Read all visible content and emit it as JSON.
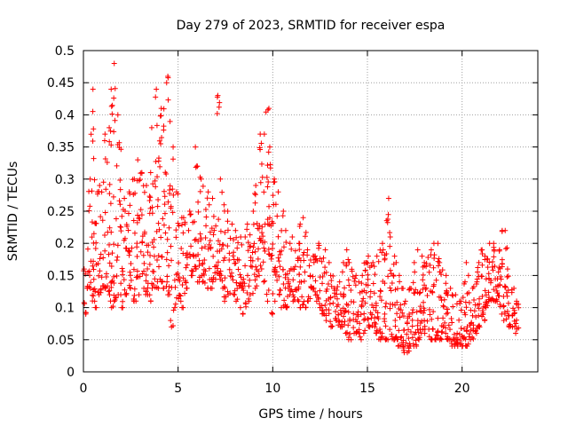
{
  "chart_data": {
    "type": "scatter",
    "title": "Day 279 of 2023, SRMTID for receiver espa",
    "xlabel": "GPS time / hours",
    "ylabel": "SRMTID / TECUs",
    "xlim": [
      0,
      24
    ],
    "ylim": [
      0,
      0.5
    ],
    "x_ticks": [
      0,
      5,
      10,
      15,
      20
    ],
    "y_ticks": [
      0,
      0.05,
      0.1,
      0.15,
      0.2,
      0.25,
      0.3,
      0.35,
      0.4,
      0.45,
      0.5
    ],
    "x_tick_labels": [
      "0",
      "5",
      "10",
      "15",
      "20"
    ],
    "y_tick_labels": [
      "0",
      "0.05",
      "0.1",
      "0.15",
      "0.2",
      "0.25",
      "0.3",
      "0.35",
      "0.4",
      "0.45",
      "0.5"
    ],
    "grid": true,
    "marker": "+",
    "color": "#ff0000",
    "series": [
      {
        "name": "SRMTID",
        "x": [
          0.0,
          0.2,
          0.4,
          0.6,
          0.8,
          1.0,
          1.2,
          1.4,
          1.6,
          1.8,
          2.0,
          2.2,
          2.4,
          2.6,
          2.8,
          3.0,
          3.2,
          3.4,
          3.6,
          3.8,
          4.0,
          4.2,
          4.4,
          4.6,
          4.8,
          5.0,
          5.2,
          5.4,
          5.6,
          5.8,
          6.0,
          6.2,
          6.4,
          6.6,
          6.8,
          7.0,
          7.2,
          7.4,
          7.6,
          7.8,
          8.0,
          8.2,
          8.4,
          8.6,
          8.8,
          9.0,
          9.2,
          9.4,
          9.6,
          9.8,
          10.0,
          10.2,
          10.4,
          10.6,
          10.8,
          11.0,
          11.2,
          11.4,
          11.6,
          11.8,
          12.0,
          12.2,
          12.4,
          12.6,
          12.8,
          13.0,
          13.2,
          13.4,
          13.6,
          13.8,
          14.0,
          14.2,
          14.4,
          14.6,
          14.8,
          15.0,
          15.2,
          15.4,
          15.6,
          15.8,
          16.0,
          16.2,
          16.4,
          16.6,
          16.8,
          17.0,
          17.2,
          17.4,
          17.6,
          17.8,
          18.0,
          18.2,
          18.4,
          18.6,
          18.8,
          19.0,
          19.2,
          19.4,
          19.6,
          19.8,
          20.0,
          20.2,
          20.4,
          20.6,
          20.8,
          21.0,
          21.2,
          21.4,
          21.6,
          21.8,
          22.0,
          22.2,
          22.4,
          22.6,
          22.8
        ],
        "lo": [
          0.09,
          0.13,
          0.11,
          0.1,
          0.12,
          0.13,
          0.12,
          0.1,
          0.11,
          0.12,
          0.1,
          0.12,
          0.13,
          0.11,
          0.12,
          0.13,
          0.12,
          0.11,
          0.13,
          0.13,
          0.14,
          0.13,
          0.12,
          0.07,
          0.1,
          0.11,
          0.1,
          0.13,
          0.15,
          0.16,
          0.14,
          0.14,
          0.13,
          0.13,
          0.14,
          0.15,
          0.13,
          0.11,
          0.12,
          0.12,
          0.11,
          0.1,
          0.09,
          0.11,
          0.12,
          0.13,
          0.15,
          0.14,
          0.11,
          0.09,
          0.11,
          0.12,
          0.1,
          0.1,
          0.12,
          0.11,
          0.11,
          0.1,
          0.1,
          0.11,
          0.13,
          0.11,
          0.1,
          0.09,
          0.08,
          0.07,
          0.08,
          0.07,
          0.07,
          0.06,
          0.05,
          0.06,
          0.06,
          0.05,
          0.06,
          0.07,
          0.07,
          0.06,
          0.05,
          0.05,
          0.05,
          0.05,
          0.05,
          0.04,
          0.03,
          0.03,
          0.04,
          0.04,
          0.05,
          0.06,
          0.06,
          0.05,
          0.05,
          0.05,
          0.05,
          0.06,
          0.05,
          0.04,
          0.04,
          0.04,
          0.04,
          0.04,
          0.05,
          0.06,
          0.07,
          0.08,
          0.1,
          0.11,
          0.11,
          0.11,
          0.09,
          0.08,
          0.07,
          0.07,
          0.06
        ],
        "hi": [
          0.16,
          0.3,
          0.44,
          0.28,
          0.29,
          0.37,
          0.38,
          0.44,
          0.48,
          0.4,
          0.27,
          0.25,
          0.28,
          0.3,
          0.33,
          0.31,
          0.29,
          0.31,
          0.38,
          0.44,
          0.41,
          0.45,
          0.46,
          0.35,
          0.28,
          0.24,
          0.24,
          0.22,
          0.25,
          0.35,
          0.32,
          0.3,
          0.28,
          0.26,
          0.27,
          0.43,
          0.3,
          0.26,
          0.25,
          0.23,
          0.22,
          0.21,
          0.21,
          0.23,
          0.25,
          0.29,
          0.37,
          0.37,
          0.41,
          0.35,
          0.3,
          0.28,
          0.25,
          0.22,
          0.2,
          0.21,
          0.2,
          0.23,
          0.24,
          0.19,
          0.18,
          0.18,
          0.2,
          0.19,
          0.17,
          0.15,
          0.13,
          0.14,
          0.17,
          0.19,
          0.17,
          0.15,
          0.14,
          0.15,
          0.17,
          0.18,
          0.17,
          0.18,
          0.2,
          0.19,
          0.27,
          0.21,
          0.18,
          0.15,
          0.13,
          0.11,
          0.13,
          0.17,
          0.19,
          0.18,
          0.17,
          0.19,
          0.2,
          0.2,
          0.17,
          0.15,
          0.13,
          0.12,
          0.12,
          0.11,
          0.14,
          0.17,
          0.13,
          0.14,
          0.17,
          0.19,
          0.18,
          0.2,
          0.2,
          0.19,
          0.22,
          0.22,
          0.16,
          0.13,
          0.11
        ],
        "n": [
          8,
          16,
          22,
          14,
          14,
          16,
          16,
          18,
          18,
          16,
          12,
          12,
          14,
          14,
          16,
          14,
          14,
          14,
          16,
          18,
          16,
          16,
          18,
          14,
          12,
          12,
          12,
          10,
          12,
          14,
          14,
          14,
          12,
          12,
          12,
          16,
          12,
          12,
          12,
          12,
          12,
          12,
          12,
          12,
          12,
          14,
          16,
          16,
          16,
          16,
          14,
          14,
          12,
          12,
          12,
          12,
          12,
          12,
          12,
          10,
          10,
          10,
          12,
          12,
          12,
          12,
          12,
          12,
          14,
          14,
          14,
          12,
          12,
          12,
          14,
          14,
          14,
          14,
          14,
          14,
          14,
          14,
          14,
          14,
          14,
          12,
          14,
          14,
          14,
          14,
          14,
          14,
          14,
          14,
          14,
          14,
          12,
          12,
          12,
          12,
          14,
          14,
          12,
          12,
          14,
          14,
          14,
          14,
          14,
          14,
          14,
          14,
          12,
          12,
          10
        ]
      }
    ]
  }
}
